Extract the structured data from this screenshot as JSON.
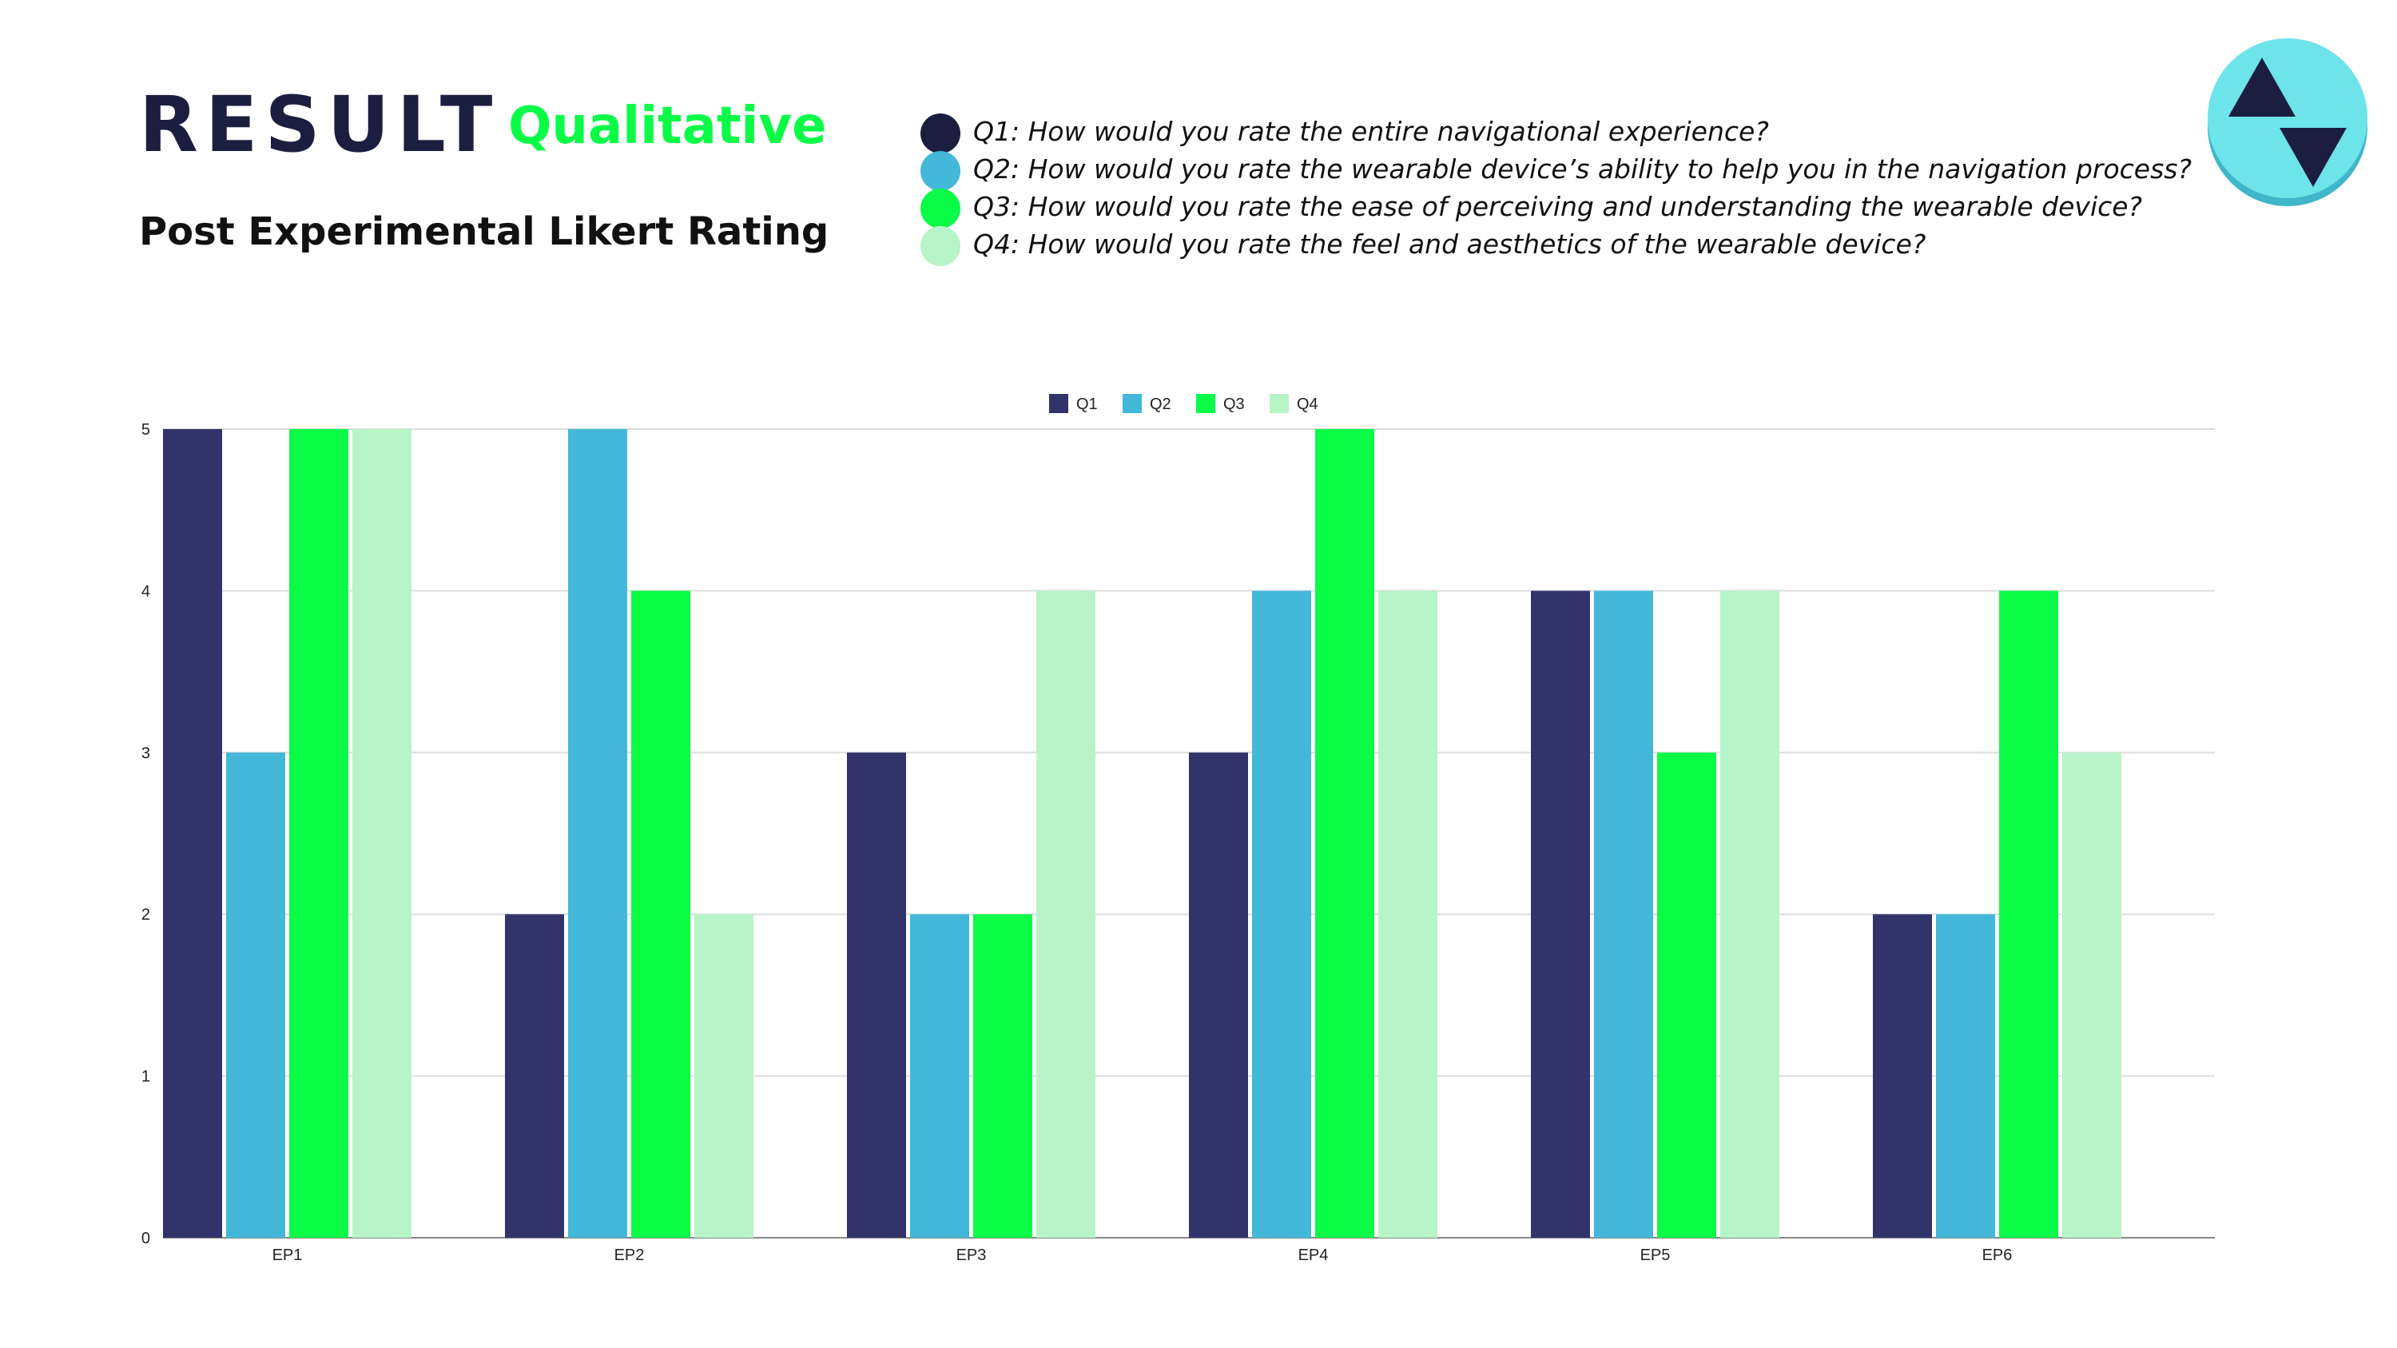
{
  "header": {
    "title": "RESULT",
    "tag": "Qualitative",
    "subtitle": "Post Experimental Likert Rating"
  },
  "questions": [
    {
      "text": "Q1: How would you rate the entire navigational experience?",
      "color": "#1b1e3f"
    },
    {
      "text": "Q2: How would you rate the wearable device’s ability to help you in the navigation process?",
      "color": "#43b8d8"
    },
    {
      "text": "Q3: How would you rate the ease of perceiving and understanding the wearable device?",
      "color": "#0afc47"
    },
    {
      "text": "Q4: How would you rate the feel and aesthetics of the wearable device?",
      "color": "#b7f4c8"
    }
  ],
  "logo": {
    "icon": "up-down-arrows-icon",
    "color": "#6de3ea",
    "arrow_color": "#1b1e3f"
  },
  "chart_data": {
    "type": "bar",
    "categories": [
      "EP1",
      "EP2",
      "EP3",
      "EP4",
      "EP5",
      "EP6"
    ],
    "series": [
      {
        "name": "Q1",
        "color": "#31336a",
        "values": [
          5,
          2,
          3,
          3,
          4,
          2
        ]
      },
      {
        "name": "Q2",
        "color": "#43b8d8",
        "values": [
          3,
          5,
          2,
          4,
          4,
          2
        ]
      },
      {
        "name": "Q3",
        "color": "#0afc47",
        "values": [
          5,
          4,
          2,
          5,
          3,
          4
        ]
      },
      {
        "name": "Q4",
        "color": "#b7f4c8",
        "values": [
          5,
          2,
          4,
          4,
          4,
          3
        ]
      }
    ],
    "ylim": [
      0,
      5
    ],
    "yticks": [
      "0",
      "1",
      "2",
      "3",
      "4",
      "5"
    ],
    "grid": true,
    "legend": "top-center"
  }
}
